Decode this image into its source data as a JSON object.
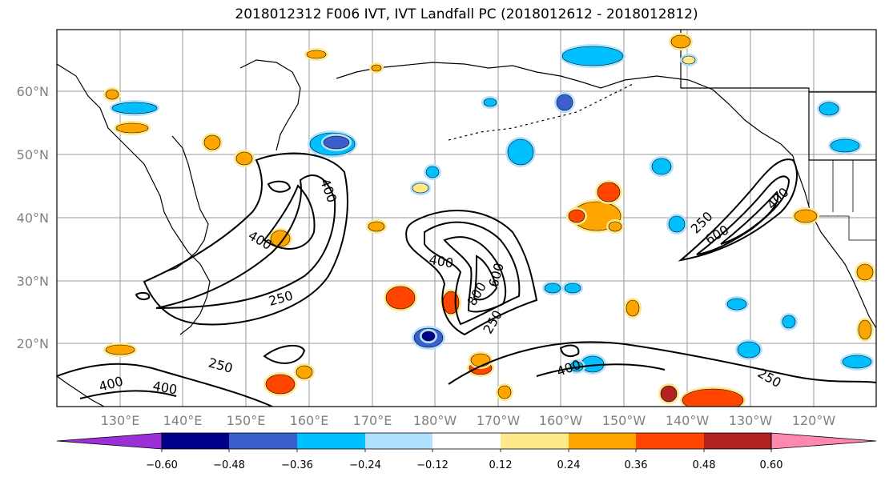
{
  "title": "2018012312 F006 IVT, IVT Landfall PC (2018012612 - 2018012812)",
  "lon_labels": [
    "130°E",
    "140°E",
    "150°E",
    "160°E",
    "170°E",
    "180°W",
    "170°W",
    "160°W",
    "150°W",
    "140°W",
    "130°W",
    "120°W"
  ],
  "lat_labels": [
    "20°N",
    "30°N",
    "40°N",
    "50°N",
    "60°N"
  ],
  "contour_labels": [
    {
      "text": "400",
      "region": "west-jet"
    },
    {
      "text": "400",
      "region": "west-jet-lower"
    },
    {
      "text": "250",
      "region": "west-jet-outer"
    },
    {
      "text": "400",
      "region": "central-low"
    },
    {
      "text": "800",
      "region": "central-low-core"
    },
    {
      "text": "600",
      "region": "central-low-core"
    },
    {
      "text": "250",
      "region": "central-low-outer"
    },
    {
      "text": "250",
      "region": "east-jet"
    },
    {
      "text": "600",
      "region": "east-jet-core"
    },
    {
      "text": "400",
      "region": "east-jet-landfall"
    },
    {
      "text": "250",
      "region": "south-east"
    },
    {
      "text": "400",
      "region": "south-central"
    },
    {
      "text": "250",
      "region": "south-west"
    },
    {
      "text": "400",
      "region": "south-west-1"
    },
    {
      "text": "400",
      "region": "south-west-2"
    }
  ],
  "colorbar": {
    "ticks": [
      "−0.60",
      "−0.48",
      "−0.36",
      "−0.24",
      "−0.12",
      "0.12",
      "0.24",
      "0.36",
      "0.48",
      "0.60"
    ],
    "colors": [
      "#9b30d9",
      "#00008b",
      "#3a5fcd",
      "#00bfff",
      "#b0e2ff",
      "#ffffff",
      "#ffe88a",
      "#ffa500",
      "#ff4500",
      "#b22222",
      "#ff88b0"
    ]
  }
}
